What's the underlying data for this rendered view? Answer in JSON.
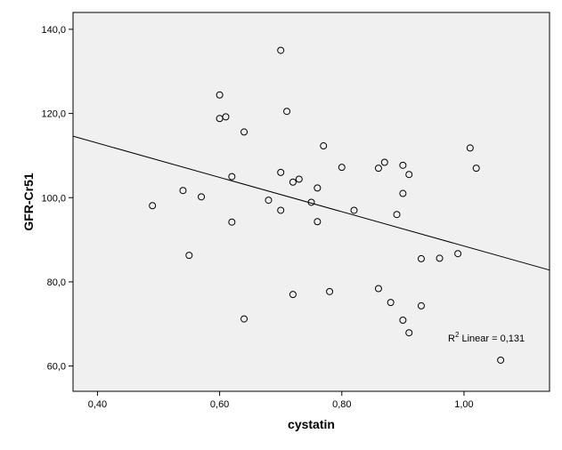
{
  "chart_data": {
    "type": "scatter",
    "xlabel": "cystatin",
    "ylabel": "GFR-Cr51",
    "xlim": [
      0.36,
      1.14
    ],
    "ylim": [
      54,
      144
    ],
    "xticks": [
      0.4,
      0.6,
      0.8,
      1.0
    ],
    "xtick_labels": [
      "0,40",
      "0,60",
      "0,80",
      "1,00"
    ],
    "yticks": [
      60,
      80,
      100,
      120,
      140
    ],
    "ytick_labels": [
      "60,0",
      "80,0",
      "100,0",
      "120,0",
      "140,0"
    ],
    "grid": false,
    "colors": {
      "plot_bg": "#f0f0f0",
      "marker": "#000000",
      "line": "#000000"
    },
    "series": [
      {
        "marker": "open-circle",
        "points": [
          [
            0.7,
            135.0
          ],
          [
            0.6,
            124.4
          ],
          [
            0.71,
            120.5
          ],
          [
            0.61,
            119.2
          ],
          [
            0.6,
            118.8
          ],
          [
            0.64,
            115.6
          ],
          [
            0.77,
            112.3
          ],
          [
            1.01,
            111.8
          ],
          [
            0.87,
            108.4
          ],
          [
            0.9,
            107.7
          ],
          [
            0.8,
            107.2
          ],
          [
            0.86,
            107.0
          ],
          [
            1.02,
            107.0
          ],
          [
            0.7,
            106.0
          ],
          [
            0.91,
            105.5
          ],
          [
            0.62,
            105.0
          ],
          [
            0.73,
            104.4
          ],
          [
            0.72,
            103.7
          ],
          [
            0.76,
            102.3
          ],
          [
            0.54,
            101.7
          ],
          [
            0.9,
            101.0
          ],
          [
            0.57,
            100.2
          ],
          [
            0.68,
            99.4
          ],
          [
            0.75,
            98.9
          ],
          [
            0.49,
            98.1
          ],
          [
            0.7,
            97.0
          ],
          [
            0.82,
            97.0
          ],
          [
            0.89,
            96.0
          ],
          [
            0.62,
            94.2
          ],
          [
            0.76,
            94.3
          ],
          [
            0.99,
            86.7
          ],
          [
            0.55,
            86.3
          ],
          [
            0.96,
            85.6
          ],
          [
            0.93,
            85.5
          ],
          [
            0.86,
            78.4
          ],
          [
            0.78,
            77.7
          ],
          [
            0.72,
            77.0
          ],
          [
            0.88,
            75.1
          ],
          [
            0.93,
            74.3
          ],
          [
            0.64,
            71.2
          ],
          [
            0.9,
            70.9
          ],
          [
            0.91,
            67.9
          ],
          [
            1.06,
            61.4
          ]
        ]
      }
    ],
    "fit_line": {
      "type": "linear",
      "y_at_xmin": 114.6,
      "y_at_xmax": 82.8
    },
    "annotation": {
      "base": "R",
      "sup": "2",
      "text": " Linear = 0,131"
    }
  }
}
